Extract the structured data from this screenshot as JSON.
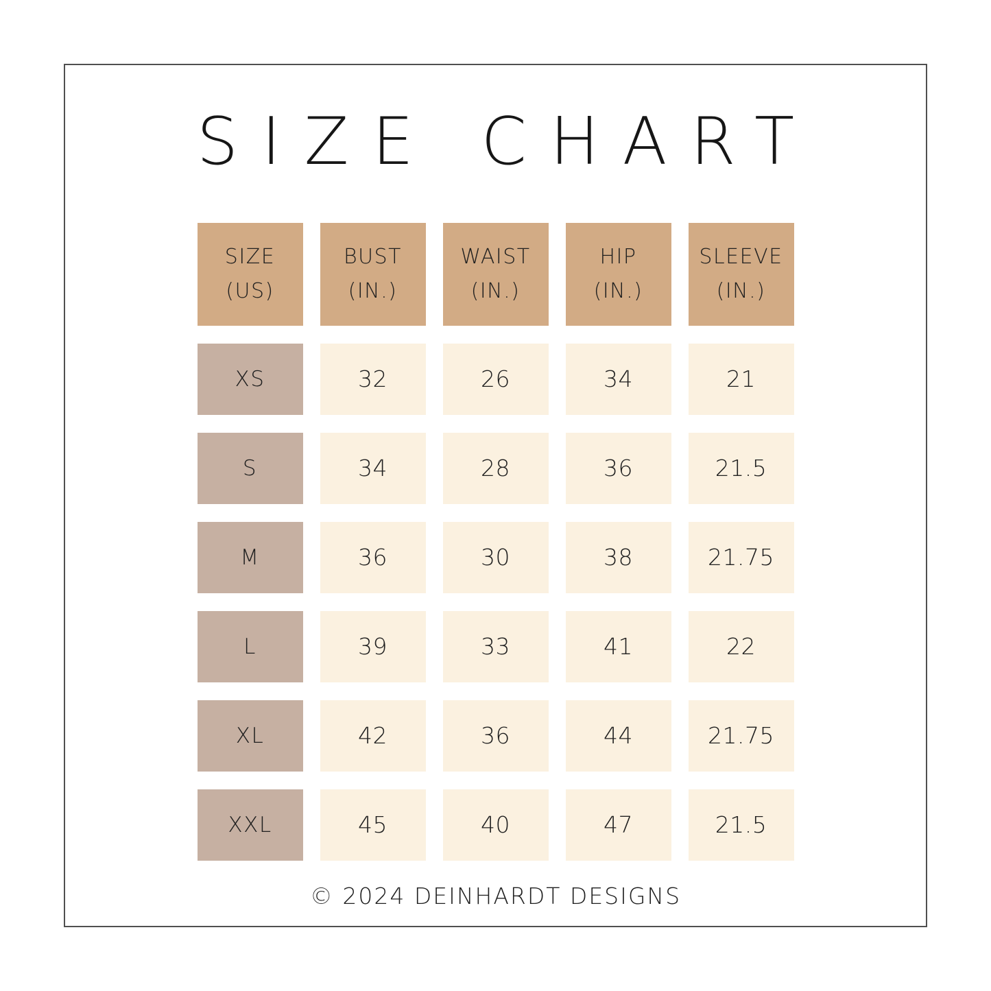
{
  "page": {
    "title": "SIZE CHART",
    "footer": "© 2024 DEINHARDT DESIGNS"
  },
  "colors": {
    "header_bg": "#d2ab85",
    "size_column_bg": "#c6b0a2",
    "value_cell_bg": "#fbf1e0",
    "frame_border": "#4f4f4f",
    "text": "#1f1f1f",
    "background": "#ffffff"
  },
  "table": {
    "columns": [
      {
        "label": "SIZE",
        "sub": "(US)"
      },
      {
        "label": "BUST",
        "sub": "(IN.)"
      },
      {
        "label": "WAIST",
        "sub": "(IN.)"
      },
      {
        "label": "HIP",
        "sub": "(IN.)"
      },
      {
        "label": "SLEEVE",
        "sub": "(IN.)"
      }
    ],
    "rows": [
      {
        "size": "XS",
        "bust": "32",
        "waist": "26",
        "hip": "34",
        "sleeve": "21"
      },
      {
        "size": "S",
        "bust": "34",
        "waist": "28",
        "hip": "36",
        "sleeve": "21.5"
      },
      {
        "size": "M",
        "bust": "36",
        "waist": "30",
        "hip": "38",
        "sleeve": "21.75"
      },
      {
        "size": "L",
        "bust": "39",
        "waist": "33",
        "hip": "41",
        "sleeve": "22"
      },
      {
        "size": "XL",
        "bust": "42",
        "waist": "36",
        "hip": "44",
        "sleeve": "21.75"
      },
      {
        "size": "XXL",
        "bust": "45",
        "waist": "40",
        "hip": "47",
        "sleeve": "21.5"
      }
    ]
  }
}
